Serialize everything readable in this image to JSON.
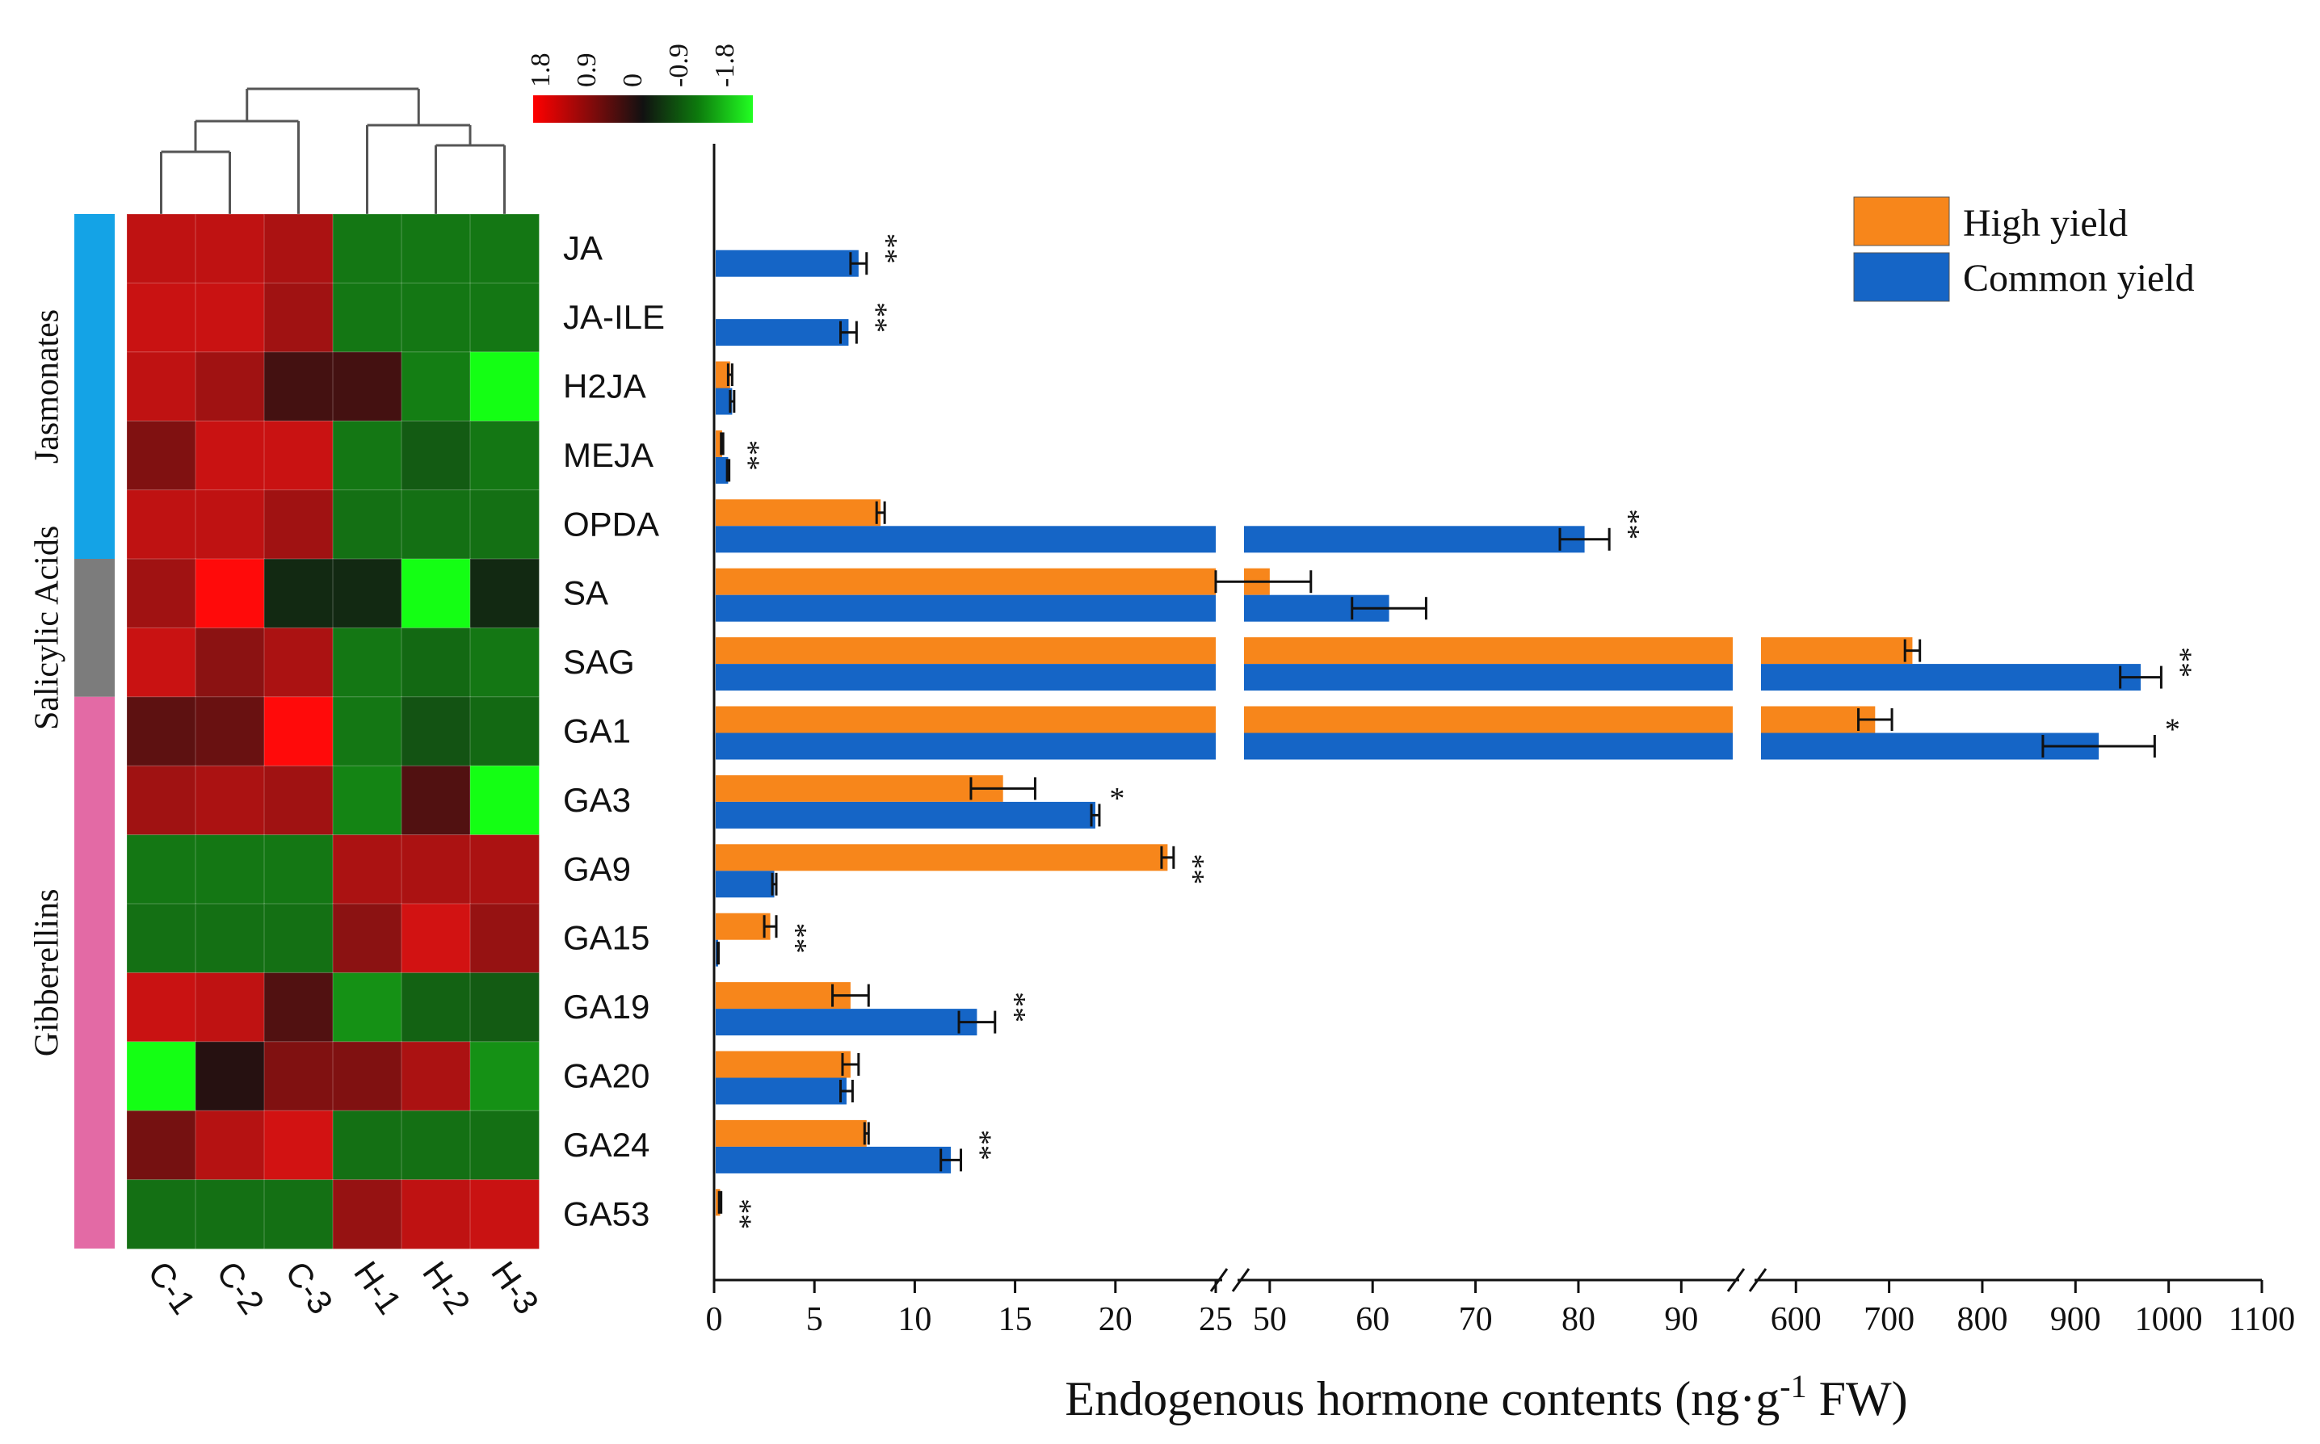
{
  "chart_data": [
    {
      "type": "heatmap",
      "title": "",
      "columns": [
        "C-1",
        "C-2",
        "C-3",
        "H-1",
        "H-2",
        "H-3"
      ],
      "rows": [
        "JA",
        "JA-ILE",
        "H2JA",
        "MEJA",
        "OPDA",
        "SA",
        "SAG",
        "GA1",
        "GA3",
        "GA9",
        "GA15",
        "GA19",
        "GA20",
        "GA24",
        "GA53"
      ],
      "values": [
        [
          1.4,
          1.4,
          1.2,
          -1.2,
          -1.2,
          -1.2
        ],
        [
          1.5,
          1.5,
          1.1,
          -1.2,
          -1.2,
          -1.2
        ],
        [
          1.4,
          1.1,
          0.3,
          0.3,
          -1.3,
          -1.8
        ],
        [
          0.8,
          1.5,
          1.5,
          -1.2,
          -0.8,
          -1.2
        ],
        [
          1.4,
          1.4,
          1.1,
          -1.1,
          -1.1,
          -1.1
        ],
        [
          1.1,
          1.8,
          -0.2,
          -0.2,
          -1.8,
          -0.2
        ],
        [
          1.5,
          0.9,
          1.2,
          -1.2,
          -1.0,
          -1.2
        ],
        [
          0.5,
          0.6,
          1.8,
          -1.2,
          -0.7,
          -1.0
        ],
        [
          1.1,
          1.2,
          1.1,
          -1.4,
          0.4,
          -1.8
        ],
        [
          -1.2,
          -1.2,
          -1.2,
          1.2,
          1.2,
          1.2
        ],
        [
          -1.1,
          -1.1,
          -1.1,
          0.9,
          1.6,
          1.0
        ],
        [
          1.5,
          1.4,
          0.4,
          -1.6,
          -0.9,
          -0.8
        ],
        [
          -1.8,
          0.1,
          0.8,
          0.8,
          1.2,
          -1.6
        ],
        [
          0.7,
          1.3,
          1.6,
          -1.1,
          -1.1,
          -1.1
        ],
        [
          -1.1,
          -1.1,
          -1.1,
          1.0,
          1.4,
          1.5
        ]
      ],
      "color_scale": {
        "ticks": [
          "1.8",
          "0.9",
          "0",
          "-0.9",
          "-1.8"
        ],
        "high_color": "#ff0000",
        "mid_color": "#111111",
        "low_color": "#00ff00"
      },
      "row_groups": [
        {
          "name": "Jasmonates",
          "start": 0,
          "end": 4,
          "color": "#14a3e6"
        },
        {
          "name": "Salicylic Acids",
          "start": 5,
          "end": 6,
          "color": "#7c7c7c"
        },
        {
          "name": "Gibberellins",
          "start": 7,
          "end": 14,
          "color": "#e36aa5"
        }
      ]
    },
    {
      "type": "bar",
      "orientation": "horizontal",
      "categories": [
        "JA",
        "JA-ILE",
        "H2JA",
        "MEJA",
        "OPDA",
        "SA",
        "SAG",
        "GA1",
        "GA3",
        "GA9",
        "GA15",
        "GA19",
        "GA20",
        "GA24",
        "GA53"
      ],
      "series": [
        {
          "name": "High yield",
          "color": "#f7861b",
          "values": [
            0,
            0,
            0.8,
            0.4,
            8.3,
            50,
            725,
            685,
            14.4,
            22.6,
            2.8,
            6.8,
            6.8,
            7.6,
            0.3
          ],
          "errors": [
            0,
            0,
            0.1,
            0.05,
            0.2,
            4,
            8,
            18,
            1.6,
            0.3,
            0.3,
            0.9,
            0.4,
            0.1,
            0.05
          ]
        },
        {
          "name": "Common yield",
          "color": "#1565c6",
          "values": [
            7.2,
            6.7,
            0.9,
            0.7,
            80.6,
            61.6,
            970,
            925,
            19,
            3.0,
            0.2,
            13.1,
            6.6,
            11.8,
            0
          ],
          "errors": [
            0.4,
            0.4,
            0.1,
            0.05,
            2.4,
            3.6,
            22,
            60,
            0.2,
            0.1,
            0.02,
            0.9,
            0.3,
            0.5,
            0
          ]
        }
      ],
      "significance": [
        "**",
        "**",
        "",
        "**",
        "**",
        "",
        "**",
        "*",
        "*",
        "**",
        "**",
        "**",
        "",
        "**",
        "**"
      ],
      "axis_segments": [
        {
          "range": [
            0,
            25
          ],
          "ticks": [
            0,
            5,
            10,
            15,
            20,
            25
          ]
        },
        {
          "range": [
            47.5,
            95
          ],
          "ticks": [
            50,
            60,
            70,
            80,
            90
          ]
        },
        {
          "range": [
            562.5,
            1100
          ],
          "ticks": [
            600,
            700,
            800,
            900,
            1000,
            1100
          ]
        }
      ],
      "tick_labels": [
        "0",
        "5",
        "10",
        "15",
        "20",
        "25",
        "50",
        "60",
        "70",
        "80",
        "90",
        "600",
        "700",
        "800",
        "900",
        "1000",
        "1100"
      ],
      "xlabel": "Endogenous hormone contents (ng·g",
      "xlabel_sup": "-1",
      "xlabel_tail": " FW)",
      "legend_position": "top-right"
    }
  ]
}
